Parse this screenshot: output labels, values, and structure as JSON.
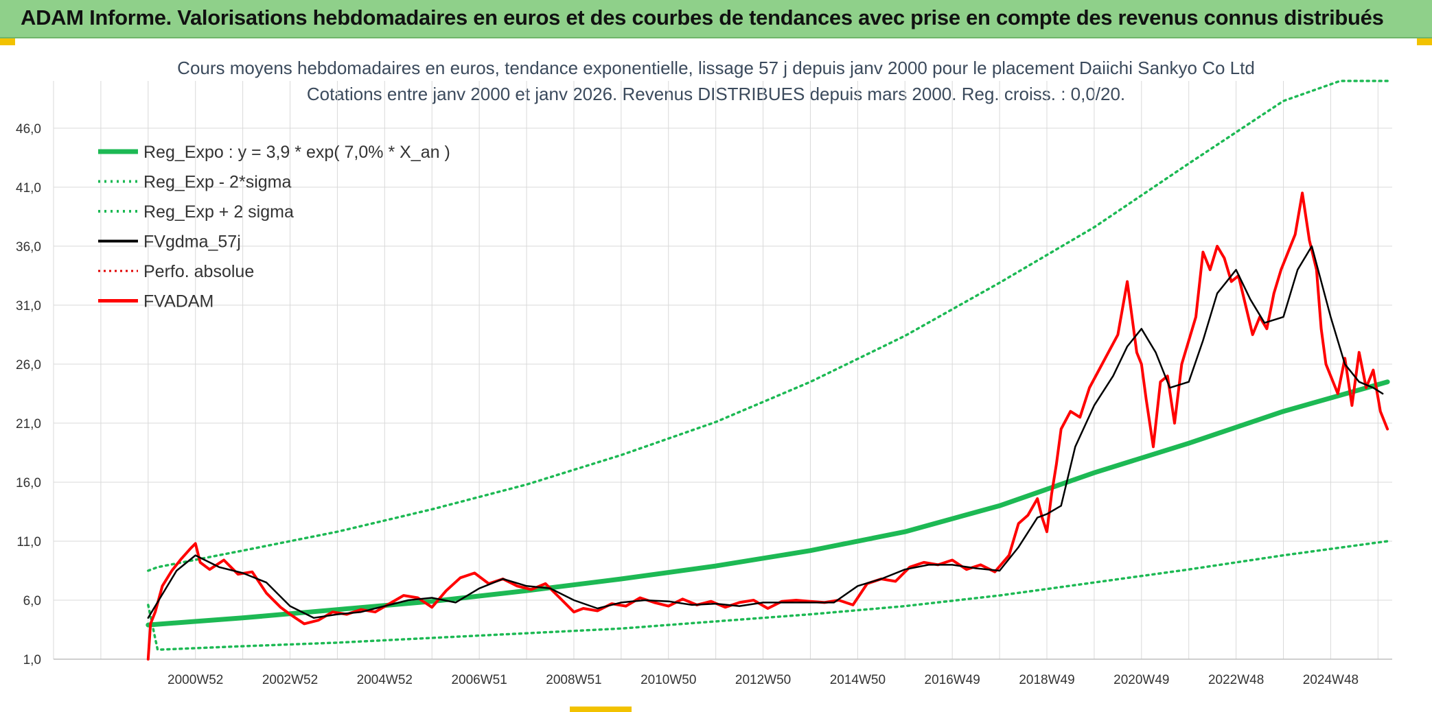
{
  "banner": {
    "title": "ADAM Informe. Valorisations hebdomadaires en euros et des courbes de tendances avec prise en compte des revenus connus distribués"
  },
  "colors": {
    "banner_bg": "#8fd08a",
    "reg_expo": "#1db954",
    "sigma": "#1db954",
    "fvgdma": "#000000",
    "perfo": "#e00000",
    "fvadam": "#ff0000",
    "grid": "#d9d9d9"
  },
  "chart_data": {
    "type": "line",
    "title_line1": "Cours moyens hebdomadaires en euros, tendance exponentielle, lissage 57 j depuis janv 2000 pour le placement Daiichi Sankyo Co Ltd",
    "title_line2": "Cotations entre janv 2000 et janv 2026. Revenus DISTRIBUES depuis mars 2000. Reg. croiss. : 0,0/20.",
    "xlabel": "",
    "ylabel": "",
    "ylim": [
      1.0,
      50.0
    ],
    "y_ticks": [
      "1,0",
      "6,0",
      "11,0",
      "16,0",
      "21,0",
      "26,0",
      "31,0",
      "36,0",
      "41,0",
      "46,0"
    ],
    "y_tick_values": [
      1,
      6,
      11,
      16,
      21,
      26,
      31,
      36,
      41,
      46
    ],
    "xlim": [
      1998.0,
      2026.3
    ],
    "x_ticks": [
      "2000W52",
      "2002W52",
      "2004W52",
      "2006W51",
      "2008W51",
      "2010W50",
      "2012W50",
      "2014W50",
      "2016W49",
      "2018W49",
      "2020W49",
      "2022W48",
      "2024W48"
    ],
    "x_tick_values": [
      2001.0,
      2003.0,
      2005.0,
      2007.0,
      2009.0,
      2011.0,
      2013.0,
      2015.0,
      2017.0,
      2019.0,
      2021.0,
      2023.0,
      2025.0
    ],
    "grid": true,
    "legend_position": "top-left",
    "series": [
      {
        "name": "Reg_Expo : y = 3,9 * exp( 7,0% *  X_an )",
        "style": "thick-solid",
        "x": [
          2000.0,
          2002.0,
          2004.0,
          2006.0,
          2008.0,
          2010.0,
          2012.0,
          2014.0,
          2016.0,
          2018.0,
          2020.0,
          2022.0,
          2024.0,
          2026.2
        ],
        "values": [
          3.9,
          4.5,
          5.2,
          5.9,
          6.8,
          7.8,
          8.9,
          10.2,
          11.8,
          14.0,
          16.8,
          19.3,
          22.0,
          24.5
        ]
      },
      {
        "name": "Reg_Exp - 2*sigma",
        "style": "dotted",
        "x": [
          2000.0,
          2000.2,
          2002.0,
          2004.0,
          2006.0,
          2008.0,
          2010.0,
          2012.0,
          2014.0,
          2016.0,
          2018.0,
          2020.0,
          2022.0,
          2024.0,
          2026.2
        ],
        "values": [
          5.6,
          1.8,
          2.1,
          2.4,
          2.8,
          3.2,
          3.6,
          4.2,
          4.8,
          5.5,
          6.4,
          7.5,
          8.6,
          9.8,
          11.0
        ]
      },
      {
        "name": "Reg_Exp + 2 sigma",
        "style": "dotted",
        "x": [
          2000.0,
          2000.2,
          2002.0,
          2004.0,
          2006.0,
          2008.0,
          2010.0,
          2012.0,
          2014.0,
          2016.0,
          2018.0,
          2020.0,
          2022.0,
          2024.0,
          2025.2,
          2026.2
        ],
        "values": [
          8.5,
          8.8,
          10.2,
          11.8,
          13.7,
          15.8,
          18.3,
          21.1,
          24.5,
          28.4,
          32.9,
          37.6,
          43.0,
          48.3,
          50.0,
          50.0
        ]
      },
      {
        "name": "FVgdma_57j",
        "style": "solid",
        "x": [
          2000.0,
          2000.3,
          2000.6,
          2001.0,
          2001.5,
          2002.0,
          2002.5,
          2003.0,
          2003.5,
          2004.0,
          2004.5,
          2005.0,
          2005.5,
          2006.0,
          2006.5,
          2007.0,
          2007.5,
          2008.0,
          2008.5,
          2009.0,
          2009.5,
          2010.0,
          2010.5,
          2011.0,
          2011.5,
          2012.0,
          2012.5,
          2013.0,
          2013.5,
          2014.0,
          2014.5,
          2015.0,
          2015.5,
          2016.0,
          2016.5,
          2017.0,
          2017.5,
          2018.0,
          2018.4,
          2018.8,
          2019.0,
          2019.3,
          2019.6,
          2020.0,
          2020.4,
          2020.7,
          2021.0,
          2021.3,
          2021.6,
          2022.0,
          2022.3,
          2022.6,
          2023.0,
          2023.3,
          2023.6,
          2024.0,
          2024.3,
          2024.6,
          2025.0,
          2025.3,
          2025.6,
          2025.9,
          2026.1
        ],
        "values": [
          4.5,
          6.5,
          8.5,
          9.8,
          8.8,
          8.3,
          7.5,
          5.5,
          4.5,
          4.8,
          5.0,
          5.5,
          6.0,
          6.2,
          5.8,
          7.0,
          7.8,
          7.2,
          7.0,
          6.0,
          5.3,
          5.8,
          6.0,
          5.9,
          5.6,
          5.7,
          5.5,
          5.8,
          5.8,
          5.8,
          5.8,
          7.2,
          7.8,
          8.6,
          9.0,
          9.0,
          8.7,
          8.5,
          10.5,
          13.0,
          13.3,
          14.0,
          19.0,
          22.5,
          25.0,
          27.5,
          29.0,
          27.0,
          24.0,
          24.5,
          28.0,
          32.0,
          34.0,
          31.5,
          29.5,
          30.0,
          34.0,
          36.0,
          30.0,
          26.0,
          24.5,
          24.0,
          23.5
        ]
      },
      {
        "name": "Perfo. absolue",
        "style": "dotted",
        "x": [],
        "values": []
      },
      {
        "name": "FVADAM",
        "style": "thick-solid",
        "x": [
          2000.0,
          2000.05,
          2000.15,
          2000.3,
          2000.5,
          2000.7,
          2000.9,
          2001.0,
          2001.1,
          2001.3,
          2001.6,
          2001.9,
          2002.2,
          2002.5,
          2002.8,
          2003.0,
          2003.3,
          2003.6,
          2003.9,
          2004.2,
          2004.5,
          2004.8,
          2005.1,
          2005.4,
          2005.7,
          2006.0,
          2006.3,
          2006.6,
          2006.9,
          2007.2,
          2007.5,
          2007.8,
          2008.1,
          2008.4,
          2008.7,
          2009.0,
          2009.2,
          2009.5,
          2009.8,
          2010.1,
          2010.4,
          2010.7,
          2011.0,
          2011.3,
          2011.6,
          2011.9,
          2012.2,
          2012.5,
          2012.8,
          2013.1,
          2013.4,
          2013.7,
          2014.0,
          2014.3,
          2014.6,
          2014.9,
          2015.2,
          2015.5,
          2015.8,
          2016.1,
          2016.4,
          2016.7,
          2017.0,
          2017.3,
          2017.6,
          2017.9,
          2018.2,
          2018.4,
          2018.6,
          2018.8,
          2018.9,
          2019.0,
          2019.1,
          2019.2,
          2019.3,
          2019.5,
          2019.7,
          2019.9,
          2020.1,
          2020.3,
          2020.5,
          2020.7,
          2020.9,
          2021.0,
          2021.1,
          2021.25,
          2021.4,
          2021.55,
          2021.7,
          2021.85,
          2022.0,
          2022.15,
          2022.3,
          2022.45,
          2022.6,
          2022.75,
          2022.9,
          2023.05,
          2023.2,
          2023.35,
          2023.5,
          2023.65,
          2023.8,
          2023.95,
          2024.1,
          2024.25,
          2024.4,
          2024.55,
          2024.7,
          2024.8,
          2024.9,
          2025.0,
          2025.15,
          2025.3,
          2025.45,
          2025.6,
          2025.75,
          2025.9,
          2026.05,
          2026.2
        ],
        "values": [
          1.0,
          4.0,
          5.0,
          7.2,
          8.5,
          9.5,
          10.4,
          10.8,
          9.2,
          8.6,
          9.4,
          8.2,
          8.4,
          6.6,
          5.4,
          4.8,
          4.0,
          4.3,
          5.0,
          4.8,
          5.2,
          5.0,
          5.7,
          6.4,
          6.2,
          5.4,
          6.8,
          7.9,
          8.3,
          7.4,
          7.8,
          7.2,
          6.9,
          7.4,
          6.2,
          5.0,
          5.3,
          5.1,
          5.7,
          5.5,
          6.2,
          5.8,
          5.5,
          6.1,
          5.6,
          5.9,
          5.4,
          5.8,
          6.0,
          5.3,
          5.9,
          6.0,
          5.9,
          5.8,
          6.0,
          5.6,
          7.4,
          7.8,
          7.6,
          8.8,
          9.2,
          9.0,
          9.4,
          8.6,
          9.0,
          8.4,
          9.8,
          12.5,
          13.2,
          14.6,
          13.0,
          11.8,
          15.0,
          17.5,
          20.5,
          22.0,
          21.5,
          24.0,
          25.5,
          27.0,
          28.5,
          33.0,
          27.0,
          26.0,
          23.0,
          19.0,
          24.5,
          25.0,
          21.0,
          26.0,
          28.0,
          30.0,
          35.5,
          34.0,
          36.0,
          35.0,
          33.0,
          33.5,
          31.0,
          28.5,
          30.0,
          29.0,
          32.0,
          34.0,
          35.5,
          37.0,
          40.5,
          36.5,
          34.0,
          29.0,
          26.0,
          25.0,
          23.5,
          26.5,
          22.5,
          27.0,
          24.0,
          25.5,
          22.0,
          20.5
        ]
      }
    ]
  }
}
